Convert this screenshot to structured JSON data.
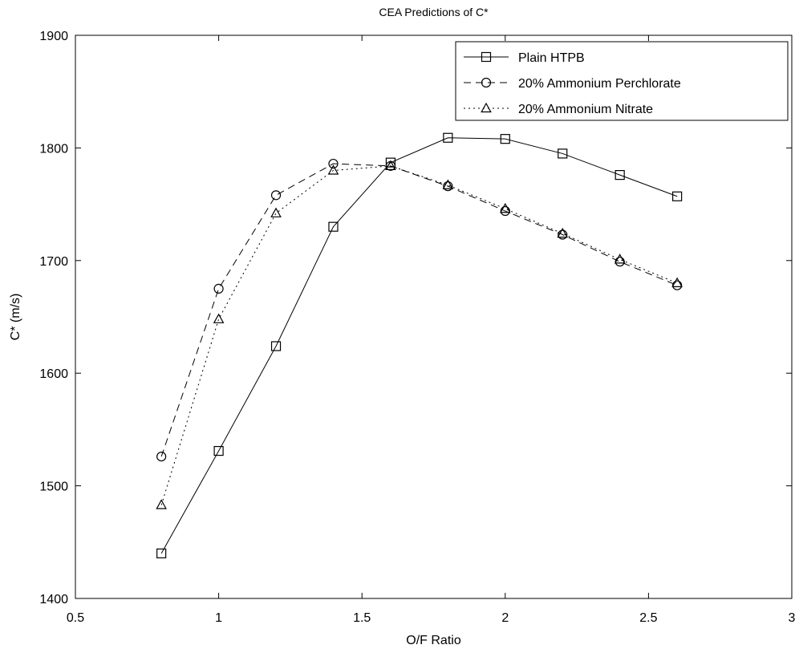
{
  "chart_data": {
    "type": "line",
    "title": "CEA Predictions of C*",
    "xlabel": "O/F Ratio",
    "ylabel": "C* (m/s)",
    "xlim": [
      0.5,
      3
    ],
    "ylim": [
      1400,
      1900
    ],
    "xticks": [
      0.5,
      1,
      1.5,
      2,
      2.5,
      3
    ],
    "xtick_labels": [
      "0.5",
      "1",
      "1.5",
      "2",
      "2.5",
      "3"
    ],
    "yticks": [
      1400,
      1500,
      1600,
      1700,
      1800,
      1900
    ],
    "ytick_labels": [
      "1400",
      "1500",
      "1600",
      "1700",
      "1800",
      "1900"
    ],
    "grid": false,
    "legend_position": "top-right",
    "series": [
      {
        "name": "Plain HTPB",
        "line_style": "solid",
        "marker": "square",
        "x": [
          0.8,
          1.0,
          1.2,
          1.4,
          1.6,
          1.8,
          2.0,
          2.2,
          2.4,
          2.6
        ],
        "y": [
          1440,
          1531,
          1624,
          1730,
          1787,
          1809,
          1808,
          1795,
          1776,
          1757
        ]
      },
      {
        "name": "20% Ammonium Perchlorate",
        "line_style": "dashed",
        "marker": "circle",
        "x": [
          0.8,
          1.0,
          1.2,
          1.4,
          1.6,
          1.8,
          2.0,
          2.2,
          2.4,
          2.6
        ],
        "y": [
          1526,
          1675,
          1758,
          1786,
          1784,
          1766,
          1744,
          1723,
          1699,
          1678
        ]
      },
      {
        "name": "20% Ammonium Nitrate",
        "line_style": "dotted",
        "marker": "triangle",
        "x": [
          0.8,
          1.0,
          1.2,
          1.4,
          1.6,
          1.8,
          2.0,
          2.2,
          2.4,
          2.6
        ],
        "y": [
          1483,
          1648,
          1742,
          1780,
          1784,
          1767,
          1746,
          1724,
          1701,
          1680
        ]
      }
    ]
  }
}
